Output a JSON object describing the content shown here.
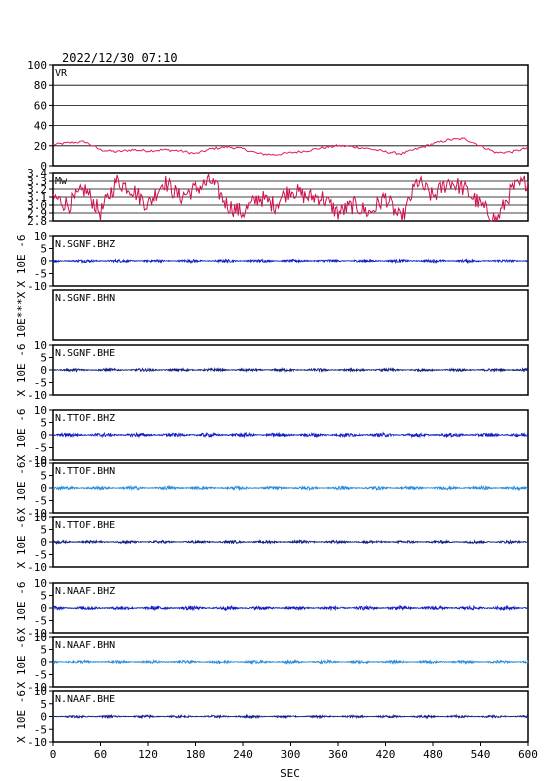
{
  "header": {
    "timestamp": "2022/12/30 07:10"
  },
  "colors": {
    "frame": "#000000",
    "grid": "#000000",
    "vr_trace": "#e0205a",
    "mw_trace": "#d0104a",
    "bhz_trace": "#1020c0",
    "bhn_trace": "#2a8cd8",
    "bhe_trace": "#102080"
  },
  "chart_data": [
    {
      "type": "line",
      "panel": "vr",
      "label": "VR",
      "ylim": [
        0,
        100
      ],
      "yticks": [
        0,
        20,
        40,
        60,
        80,
        100
      ],
      "ytick_labels": [
        "0",
        "20",
        "40",
        "60",
        "80",
        "100"
      ],
      "grid": true,
      "xlim": [
        0,
        600
      ],
      "x": [
        0,
        20,
        40,
        60,
        80,
        100,
        120,
        140,
        160,
        180,
        200,
        220,
        240,
        260,
        280,
        300,
        320,
        340,
        360,
        380,
        400,
        420,
        440,
        460,
        480,
        500,
        520,
        540,
        560,
        580,
        600
      ],
      "values": [
        21,
        23,
        24,
        16,
        14,
        16,
        15,
        16,
        15,
        12,
        17,
        19,
        17,
        12,
        11,
        13,
        15,
        18,
        20,
        19,
        17,
        14,
        12,
        17,
        22,
        26,
        27,
        20,
        13,
        14,
        18
      ]
    },
    {
      "type": "line",
      "panel": "mw",
      "label": "Mw",
      "ylim": [
        2.8,
        3.4
      ],
      "yticks": [
        2.8,
        2.9,
        3.0,
        3.1,
        3.2,
        3.3,
        3.4
      ],
      "ytick_labels": [
        "2.8",
        "2.9",
        "3.0",
        "3.1",
        "3.2",
        "3.3",
        "3.4"
      ],
      "grid": true,
      "xlim": [
        0,
        600
      ],
      "x": [
        0,
        20,
        40,
        60,
        80,
        100,
        120,
        140,
        160,
        180,
        200,
        220,
        240,
        260,
        280,
        300,
        320,
        340,
        360,
        380,
        400,
        420,
        440,
        460,
        480,
        500,
        520,
        540,
        560,
        580,
        600
      ],
      "values": [
        3.1,
        3.0,
        3.2,
        2.9,
        3.3,
        3.2,
        3.0,
        3.3,
        3.1,
        3.2,
        3.3,
        3.0,
        2.9,
        3.1,
        3.0,
        3.2,
        3.1,
        3.1,
        2.9,
        3.0,
        2.9,
        3.1,
        2.8,
        3.3,
        3.1,
        3.3,
        3.2,
        3.0,
        2.8,
        3.2,
        3.3
      ]
    },
    {
      "type": "line",
      "panel": "sgnf-bhz",
      "label": "N.SGNF.BHZ",
      "ylim": [
        -10,
        10
      ],
      "yticks": [
        -10,
        -5,
        0,
        5,
        10
      ],
      "ytick_labels": [
        "-10",
        "-5",
        "0",
        "5",
        "10"
      ],
      "ylabel": "X 10E -6",
      "amplitude": 0.6,
      "color_key": "bhz_trace"
    },
    {
      "type": "line",
      "panel": "sgnf-bhn",
      "label": "N.SGNF.BHN",
      "ylim": [],
      "yticks": [],
      "ytick_labels": [],
      "ylabel": "10E***X",
      "amplitude": 0,
      "color_key": "bhn_trace"
    },
    {
      "type": "line",
      "panel": "sgnf-bhe",
      "label": "N.SGNF.BHE",
      "ylim": [
        -10,
        10
      ],
      "yticks": [
        -10,
        -5,
        0,
        5,
        10
      ],
      "ytick_labels": [
        "-10",
        "-5",
        "0",
        "5",
        "10"
      ],
      "ylabel": "X 10E -6",
      "amplitude": 0.6,
      "color_key": "bhe_trace"
    },
    {
      "type": "line",
      "panel": "ttof-bhz",
      "label": "N.TTOF.BHZ",
      "ylim": [
        -10,
        10
      ],
      "yticks": [
        -10,
        -5,
        0,
        5,
        10
      ],
      "ytick_labels": [
        "-10",
        "-5",
        "0",
        "5",
        "10"
      ],
      "ylabel": "X 10E -6",
      "amplitude": 0.8,
      "color_key": "bhz_trace"
    },
    {
      "type": "line",
      "panel": "ttof-bhn",
      "label": "N.TTOF.BHN",
      "ylim": [
        -10,
        10
      ],
      "yticks": [
        -10,
        -5,
        0,
        5,
        10
      ],
      "ytick_labels": [
        "-10",
        "-5",
        "0",
        "5",
        "10"
      ],
      "ylabel": "X 10E -6",
      "amplitude": 0.7,
      "color_key": "bhn_trace"
    },
    {
      "type": "line",
      "panel": "ttof-bhe",
      "label": "N.TTOF.BHE",
      "ylim": [
        -10,
        10
      ],
      "yticks": [
        -10,
        -5,
        0,
        5,
        10
      ],
      "ytick_labels": [
        "-10",
        "-5",
        "0",
        "5",
        "10"
      ],
      "ylabel": "X 10E -6",
      "amplitude": 0.6,
      "color_key": "bhe_trace"
    },
    {
      "type": "line",
      "panel": "naaf-bhz",
      "label": "N.NAAF.BHZ",
      "ylim": [
        -10,
        10
      ],
      "yticks": [
        -10,
        -5,
        0,
        5,
        10
      ],
      "ytick_labels": [
        "-10",
        "-5",
        "0",
        "5",
        "10"
      ],
      "ylabel": "X 10E -6",
      "amplitude": 0.8,
      "color_key": "bhz_trace"
    },
    {
      "type": "line",
      "panel": "naaf-bhn",
      "label": "N.NAAF.BHN",
      "ylim": [
        -10,
        10
      ],
      "yticks": [
        -10,
        -5,
        0,
        5,
        10
      ],
      "ytick_labels": [
        "-10",
        "-5",
        "0",
        "5",
        "10"
      ],
      "ylabel": "X 10E -6",
      "amplitude": 0.6,
      "color_key": "bhn_trace"
    },
    {
      "type": "line",
      "panel": "naaf-bhe",
      "label": "N.NAAF.BHE",
      "ylim": [
        -10,
        10
      ],
      "yticks": [
        -10,
        -5,
        0,
        5,
        10
      ],
      "ytick_labels": [
        "-10",
        "-5",
        "0",
        "5",
        "10"
      ],
      "ylabel": "X 10E -6",
      "amplitude": 0.5,
      "color_key": "bhe_trace"
    }
  ],
  "x_axis": {
    "xlim": [
      0,
      600
    ],
    "ticks": [
      0,
      60,
      120,
      180,
      240,
      300,
      360,
      420,
      480,
      540,
      600
    ],
    "tick_labels": [
      "0",
      "60",
      "120",
      "180",
      "240",
      "300",
      "360",
      "420",
      "480",
      "540",
      "600"
    ],
    "label": "SEC"
  }
}
